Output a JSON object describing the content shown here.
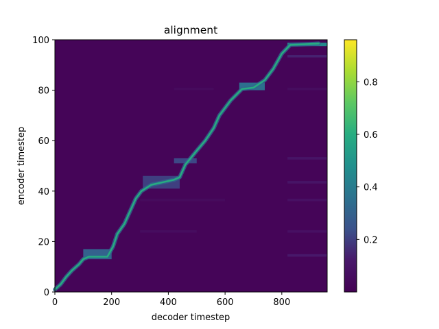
{
  "chart_data": {
    "type": "heatmap",
    "title": "alignment",
    "xlabel": "decoder timestep",
    "ylabel": "encoder timestep",
    "xlim": [
      0,
      960
    ],
    "ylim": [
      0,
      100
    ],
    "x_ticks": [
      0,
      200,
      400,
      600,
      800
    ],
    "y_ticks": [
      0,
      20,
      40,
      60,
      80,
      100
    ],
    "colormap": "viridis",
    "colorbar": {
      "range": [
        0.0,
        0.96
      ],
      "ticks": [
        0.2,
        0.4,
        0.6,
        0.8
      ],
      "tick_labels": [
        "0.2",
        "0.4",
        "0.6",
        "0.8"
      ],
      "placement": "right"
    },
    "background_value": 0.02,
    "alignment_path": [
      [
        0,
        1
      ],
      [
        20,
        3
      ],
      [
        40,
        6
      ],
      [
        60,
        8.5
      ],
      [
        85,
        11
      ],
      [
        100,
        13
      ],
      [
        120,
        14
      ],
      [
        150,
        14
      ],
      [
        185,
        14
      ],
      [
        205,
        18
      ],
      [
        220,
        23
      ],
      [
        245,
        27
      ],
      [
        265,
        32
      ],
      [
        285,
        37
      ],
      [
        305,
        40
      ],
      [
        340,
        42.5
      ],
      [
        380,
        43.5
      ],
      [
        420,
        44.5
      ],
      [
        440,
        45.5
      ],
      [
        460,
        50.5
      ],
      [
        500,
        56
      ],
      [
        530,
        60
      ],
      [
        560,
        65
      ],
      [
        580,
        70
      ],
      [
        620,
        76
      ],
      [
        660,
        80.5
      ],
      [
        700,
        81
      ],
      [
        740,
        84
      ],
      [
        770,
        88.5
      ],
      [
        800,
        94.5
      ],
      [
        830,
        98
      ],
      [
        880,
        98.2
      ],
      [
        930,
        98.5
      ]
    ],
    "plateaus": [
      {
        "x_start": 100,
        "x_end": 200,
        "y_start": 13,
        "y_end": 17,
        "value": 0.3
      },
      {
        "x_start": 310,
        "x_end": 440,
        "y_start": 41,
        "y_end": 46,
        "value": 0.2
      },
      {
        "x_start": 420,
        "x_end": 500,
        "y_start": 51,
        "y_end": 53,
        "value": 0.22
      },
      {
        "x_start": 650,
        "x_end": 740,
        "y_start": 80,
        "y_end": 83,
        "value": 0.35
      },
      {
        "x_start": 820,
        "x_end": 960,
        "y_start": 97.5,
        "y_end": 98.8,
        "value": 0.45
      }
    ],
    "faint_bands": [
      {
        "y": 14.5,
        "x_start": 820,
        "x_end": 960,
        "value": 0.12
      },
      {
        "y": 24,
        "x_start": 820,
        "x_end": 960,
        "value": 0.08
      },
      {
        "y": 36.5,
        "x_start": 820,
        "x_end": 960,
        "value": 0.08
      },
      {
        "y": 43.5,
        "x_start": 820,
        "x_end": 960,
        "value": 0.1
      },
      {
        "y": 53,
        "x_start": 820,
        "x_end": 960,
        "value": 0.1
      },
      {
        "y": 80.5,
        "x_start": 820,
        "x_end": 960,
        "value": 0.06
      },
      {
        "y": 93.5,
        "x_start": 820,
        "x_end": 960,
        "value": 0.14
      },
      {
        "y": 24,
        "x_start": 300,
        "x_end": 500,
        "value": 0.06
      },
      {
        "y": 36.5,
        "x_start": 300,
        "x_end": 600,
        "value": 0.05
      },
      {
        "y": 80.5,
        "x_start": 420,
        "x_end": 560,
        "value": 0.05
      }
    ]
  }
}
